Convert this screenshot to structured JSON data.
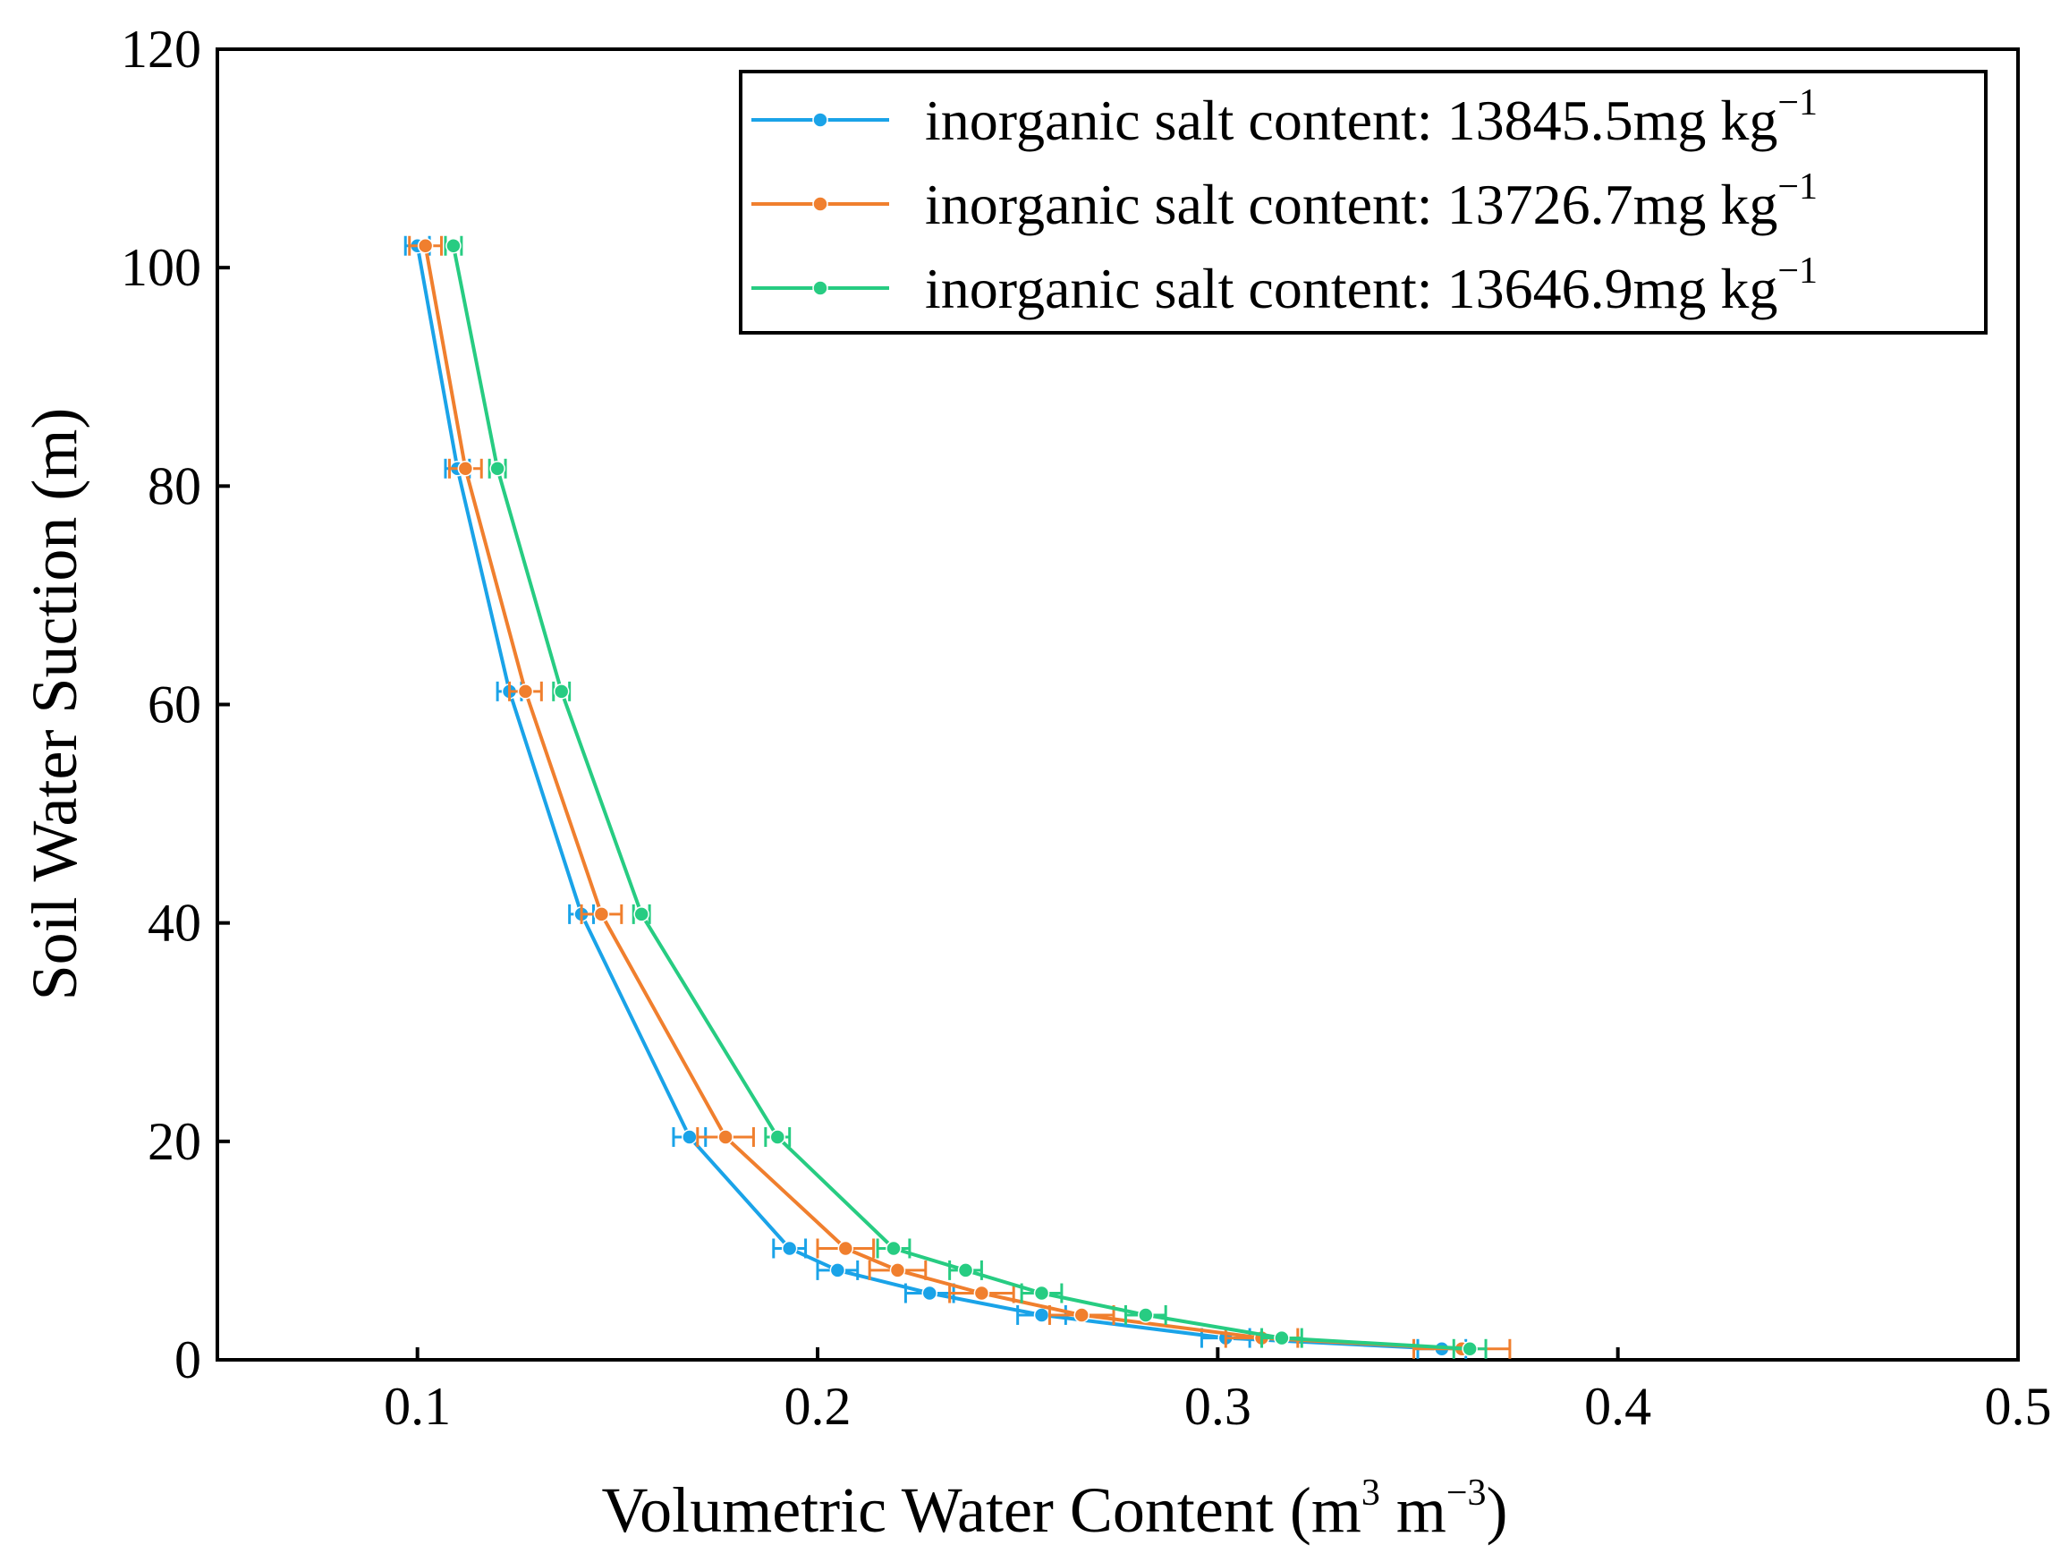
{
  "chart_data": {
    "type": "line",
    "xlabel": {
      "prefix": "Volumetric Water Content (m",
      "sup1": "3",
      "mid": " m",
      "sup2": "−3",
      "suffix": ")"
    },
    "ylabel": "Soil Water Suction (m)",
    "xlim": [
      0.05,
      0.5
    ],
    "ylim": [
      0,
      120
    ],
    "xticks": [
      0.1,
      0.2,
      0.3,
      0.4,
      0.5
    ],
    "xtick_labels": [
      "0.1",
      "0.2",
      "0.3",
      "0.4",
      "0.5"
    ],
    "yticks": [
      0,
      20,
      40,
      60,
      80,
      100,
      120
    ],
    "ytick_labels": [
      "0",
      "20",
      "40",
      "60",
      "80",
      "100",
      "120"
    ],
    "grid": false,
    "legend_position": "top-right",
    "legend_unit": {
      "base": "mg kg",
      "sup": "−1"
    },
    "series": [
      {
        "name": "inorganic salt content: 13845.5",
        "color": "#1aa3e8",
        "points": [
          {
            "x": 0.1,
            "y": 102,
            "xerr": 0.003
          },
          {
            "x": 0.11,
            "y": 81.6,
            "xerr": 0.003
          },
          {
            "x": 0.123,
            "y": 61.2,
            "xerr": 0.003
          },
          {
            "x": 0.141,
            "y": 40.8,
            "xerr": 0.003
          },
          {
            "x": 0.168,
            "y": 20.4,
            "xerr": 0.004
          },
          {
            "x": 0.193,
            "y": 10.2,
            "xerr": 0.004
          },
          {
            "x": 0.205,
            "y": 8.2,
            "xerr": 0.005
          },
          {
            "x": 0.228,
            "y": 6.1,
            "xerr": 0.006
          },
          {
            "x": 0.256,
            "y": 4.1,
            "xerr": 0.006
          },
          {
            "x": 0.302,
            "y": 2.0,
            "xerr": 0.006
          },
          {
            "x": 0.356,
            "y": 1.0,
            "xerr": 0.006
          }
        ]
      },
      {
        "name": "inorganic salt content: 13726.7",
        "color": "#f07f2e",
        "points": [
          {
            "x": 0.102,
            "y": 102,
            "xerr": 0.004
          },
          {
            "x": 0.112,
            "y": 81.6,
            "xerr": 0.004
          },
          {
            "x": 0.127,
            "y": 61.2,
            "xerr": 0.004
          },
          {
            "x": 0.146,
            "y": 40.8,
            "xerr": 0.005
          },
          {
            "x": 0.177,
            "y": 20.4,
            "xerr": 0.007
          },
          {
            "x": 0.207,
            "y": 10.2,
            "xerr": 0.007
          },
          {
            "x": 0.22,
            "y": 8.2,
            "xerr": 0.007
          },
          {
            "x": 0.241,
            "y": 6.1,
            "xerr": 0.008
          },
          {
            "x": 0.266,
            "y": 4.1,
            "xerr": 0.008
          },
          {
            "x": 0.311,
            "y": 2.0,
            "xerr": 0.009
          },
          {
            "x": 0.361,
            "y": 1.0,
            "xerr": 0.012
          }
        ]
      },
      {
        "name": "inorganic salt content: 13646.9",
        "color": "#27cc82",
        "points": [
          {
            "x": 0.109,
            "y": 102,
            "xerr": 0.002
          },
          {
            "x": 0.12,
            "y": 81.6,
            "xerr": 0.002
          },
          {
            "x": 0.136,
            "y": 61.2,
            "xerr": 0.002
          },
          {
            "x": 0.156,
            "y": 40.8,
            "xerr": 0.002
          },
          {
            "x": 0.19,
            "y": 20.4,
            "xerr": 0.003
          },
          {
            "x": 0.219,
            "y": 10.2,
            "xerr": 0.004
          },
          {
            "x": 0.237,
            "y": 8.2,
            "xerr": 0.004
          },
          {
            "x": 0.256,
            "y": 6.1,
            "xerr": 0.005
          },
          {
            "x": 0.282,
            "y": 4.1,
            "xerr": 0.005
          },
          {
            "x": 0.316,
            "y": 2.0,
            "xerr": 0.005
          },
          {
            "x": 0.363,
            "y": 1.0,
            "xerr": 0.004
          }
        ]
      }
    ]
  }
}
